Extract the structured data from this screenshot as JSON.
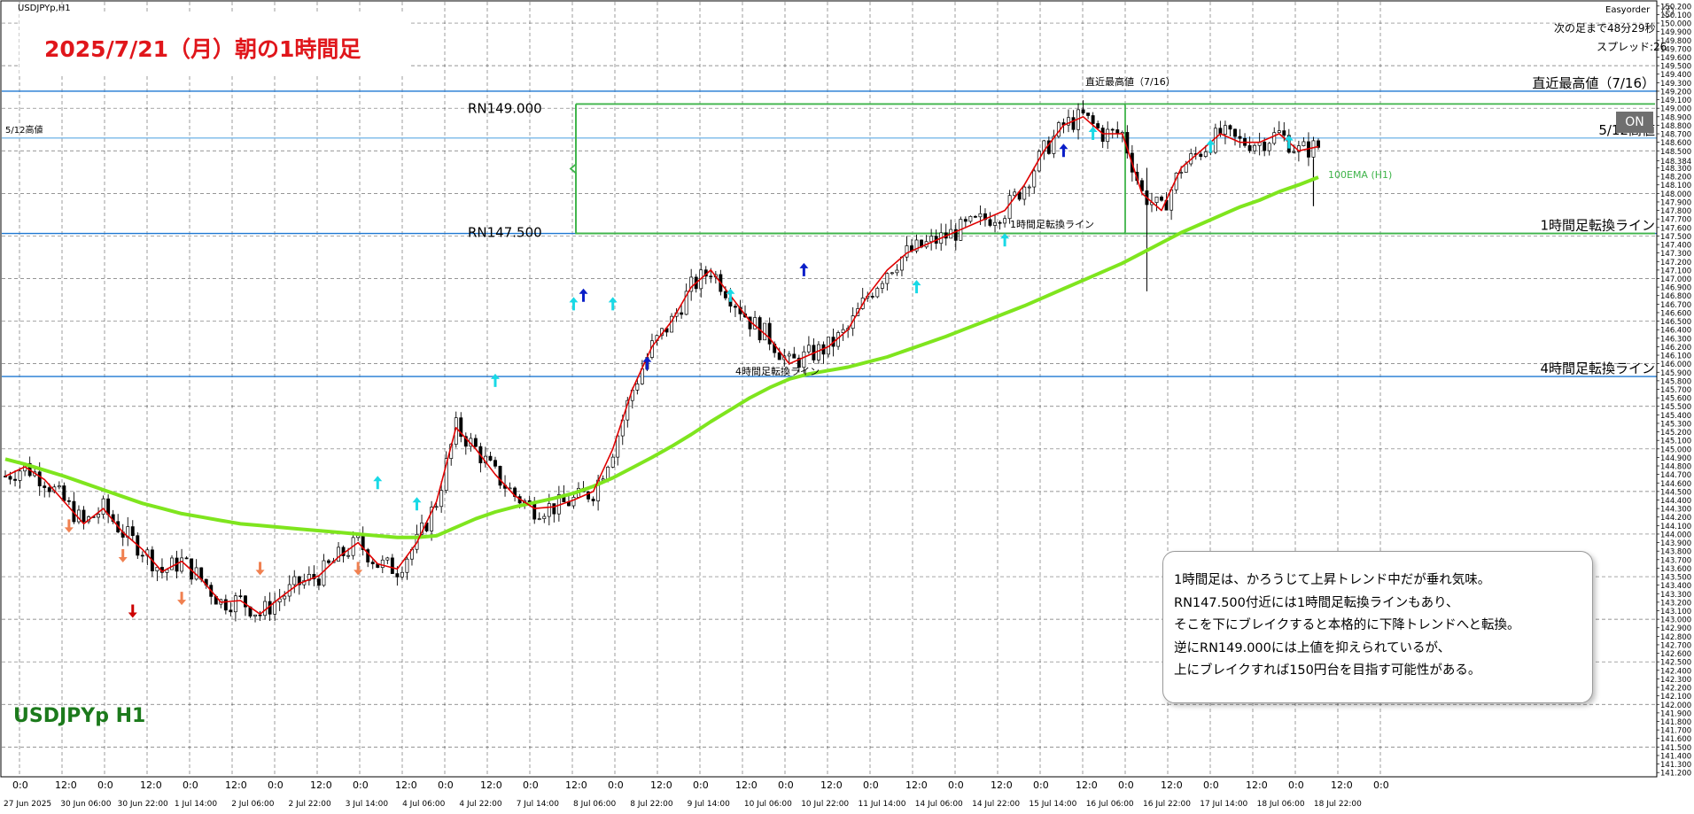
{
  "window": {
    "symbol_label": "USDJPYp,H1",
    "headline": "2025/7/21（月）朝の1時間足",
    "watermark": "USDJPYp H1"
  },
  "ea_panel": {
    "title": "Easyorder",
    "remaining": "次の足まで48分29秒",
    "spread": "スプレッド:26",
    "on_button": "ON"
  },
  "note": {
    "lines": [
      "1時間足は、かろうじて上昇トレンド中だが垂れ気味。",
      "RN147.500付近には1時間足転換ラインもあり、",
      "そこを下にブレイクすると本格的に下降トレンドへと転換。",
      "逆にRN149.000には上値を抑えられているが、",
      "上にブレイクすれば150円台を目指す可能性がある。"
    ]
  },
  "colors": {
    "background": "#ffffff",
    "grid": "#000000",
    "candle": "#000000",
    "ema_fast": "#e00000",
    "ema_100": "#7fe51e",
    "hline": "#1e78d2",
    "rn_box": "#3fb44a",
    "up_arrow_cyan": "#19d9e6",
    "up_arrow_blue": "#0a1ec8",
    "down_arrow_orange": "#f08050",
    "down_arrow_red": "#cc0000",
    "headline": "#e0161b",
    "watermark": "#1c7a1c",
    "ema_label": "#3fb44a"
  },
  "chart_data": {
    "type": "line",
    "title": "USDJPYp,H1",
    "ylim": [
      141.2,
      150.2
    ],
    "y_tick_labels": [
      "150.200",
      "150.100",
      "150.000",
      "149.900",
      "149.800",
      "149.700",
      "149.600",
      "149.500",
      "149.400",
      "149.300",
      "149.200",
      "149.100",
      "149.000",
      "148.900",
      "148.800",
      "148.700",
      "148.600",
      "148.500",
      "148.384",
      "148.300",
      "148.200",
      "148.100",
      "148.000",
      "147.900",
      "147.800",
      "147.700",
      "147.600",
      "147.500",
      "147.400",
      "147.300",
      "147.200",
      "147.100",
      "147.000",
      "146.900",
      "146.800",
      "146.700",
      "146.600",
      "146.500",
      "146.400",
      "146.300",
      "146.200",
      "146.100",
      "146.000",
      "145.900",
      "145.800",
      "145.700",
      "145.600",
      "145.500",
      "145.400",
      "145.300",
      "145.200",
      "145.100",
      "145.000",
      "144.900",
      "144.800",
      "144.700",
      "144.600",
      "144.500",
      "144.400",
      "144.300",
      "144.200",
      "144.100",
      "144.000",
      "143.900",
      "143.800",
      "143.700",
      "143.600",
      "143.500",
      "143.400",
      "143.300",
      "143.200",
      "143.100",
      "143.000",
      "142.900",
      "142.800",
      "142.700",
      "142.600",
      "142.500",
      "142.400",
      "142.300",
      "142.200",
      "142.100",
      "142.000",
      "141.900",
      "141.800",
      "141.700",
      "141.600",
      "141.500",
      "141.400",
      "141.300",
      "141.200"
    ],
    "time_ticks": [
      "0:0",
      "12:0",
      "0:0",
      "12:0",
      "0:0",
      "12:0",
      "0:0",
      "12:0",
      "0:0",
      "12:0",
      "0:0",
      "12:0",
      "0:0",
      "12:0",
      "0:0",
      "12:0",
      "0:0",
      "12:0",
      "0:0",
      "12:0",
      "0:0",
      "12:0",
      "0:0",
      "12:0",
      "0:0",
      "12:0",
      "0:0",
      "12:0",
      "0:0",
      "12:0",
      "0:0",
      "12:0",
      "0:0"
    ],
    "date_labels": [
      "27 Jun 2025",
      "30 Jun 06:00",
      "30 Jun 22:00",
      "1 Jul 14:00",
      "2 Jul 06:00",
      "2 Jul 22:00",
      "3 Jul 14:00",
      "4 Jul 06:00",
      "4 Jul 22:00",
      "7 Jul 14:00",
      "8 Jul 06:00",
      "8 Jul 22:00",
      "9 Jul 14:00",
      "10 Jul 06:00",
      "10 Jul 22:00",
      "11 Jul 14:00",
      "14 Jul 06:00",
      "14 Jul 22:00",
      "15 Jul 14:00",
      "16 Jul 06:00",
      "16 Jul 22:00",
      "17 Jul 14:00",
      "18 Jul 06:00",
      "18 Jul 22:00"
    ],
    "series": [
      {
        "values": [
          144.68,
          144.79,
          144.64,
          144.38,
          144.12,
          144.3,
          144.02,
          143.82,
          143.56,
          143.68,
          143.47,
          143.2,
          143.22,
          143.06,
          143.25,
          143.42,
          143.51,
          143.73,
          143.9,
          143.65,
          143.59,
          143.9,
          144.38,
          145.25,
          145.0,
          144.7,
          144.45,
          144.3,
          144.32,
          144.4,
          144.5,
          145.0,
          145.7,
          146.2,
          146.5,
          146.9,
          147.1,
          146.8,
          146.5,
          146.3,
          146.0,
          146.1,
          146.2,
          146.4,
          146.8,
          147.1,
          147.3,
          147.4,
          147.5,
          147.6,
          147.7,
          147.8,
          148.1,
          148.5,
          148.8,
          148.9,
          148.7,
          148.7,
          148.0,
          147.8,
          148.3,
          148.5,
          148.7,
          148.6,
          148.6,
          148.7,
          148.5,
          148.55
        ]
      },
      {
        "values": [
          144.88,
          144.82,
          144.75,
          144.68,
          144.6,
          144.52,
          144.44,
          144.36,
          144.3,
          144.24,
          144.2,
          144.16,
          144.12,
          144.1,
          144.08,
          144.06,
          144.04,
          144.02,
          144.0,
          143.98,
          143.96,
          143.96,
          143.98,
          144.08,
          144.18,
          144.26,
          144.32,
          144.37,
          144.42,
          144.48,
          144.56,
          144.66,
          144.78,
          144.9,
          145.03,
          145.17,
          145.32,
          145.46,
          145.6,
          145.72,
          145.82,
          145.88,
          145.92,
          145.96,
          146.02,
          146.08,
          146.16,
          146.24,
          146.32,
          146.41,
          146.5,
          146.59,
          146.68,
          146.78,
          146.88,
          146.98,
          147.08,
          147.18,
          147.3,
          147.42,
          147.54,
          147.64,
          147.74,
          147.84,
          147.92,
          148.02,
          148.1,
          148.19
        ]
      }
    ],
    "series_x_hours": [
      0,
      8,
      16,
      24,
      32,
      40,
      48,
      56,
      64,
      72,
      80,
      88,
      96,
      104,
      112,
      120,
      128,
      136,
      144,
      152,
      160,
      168,
      176,
      184,
      192,
      200,
      208,
      216,
      224,
      232,
      240,
      248,
      256,
      264,
      272,
      280,
      288,
      296,
      304,
      312,
      320,
      328,
      336,
      344,
      352,
      360,
      368,
      376,
      384,
      392,
      400,
      408,
      416,
      424,
      432,
      440,
      448,
      456,
      464,
      472,
      480,
      488,
      496,
      504,
      512,
      520,
      528,
      536
    ],
    "horizontal_lines": [
      {
        "label": "直近最高値（7/16）",
        "value": 149.2
      },
      {
        "label": "5/12高値",
        "value": 148.65
      },
      {
        "label": "1時間足転換ライン",
        "value": 147.53
      },
      {
        "label": "4時間足転換ライン",
        "value": 145.85
      }
    ],
    "rn_box": {
      "top_label": "RN149.000",
      "bottom_label": "RN147.500",
      "top": 149.05,
      "bottom": 147.53
    },
    "annotations": [
      {
        "text": "直近最高値（7/16）"
      },
      {
        "text": "5/12高値"
      },
      {
        "text": "100EMA (H1)"
      },
      {
        "text": "1時間足転換ライン"
      },
      {
        "text": "4時間足転換ライン"
      }
    ],
    "grid": true
  }
}
